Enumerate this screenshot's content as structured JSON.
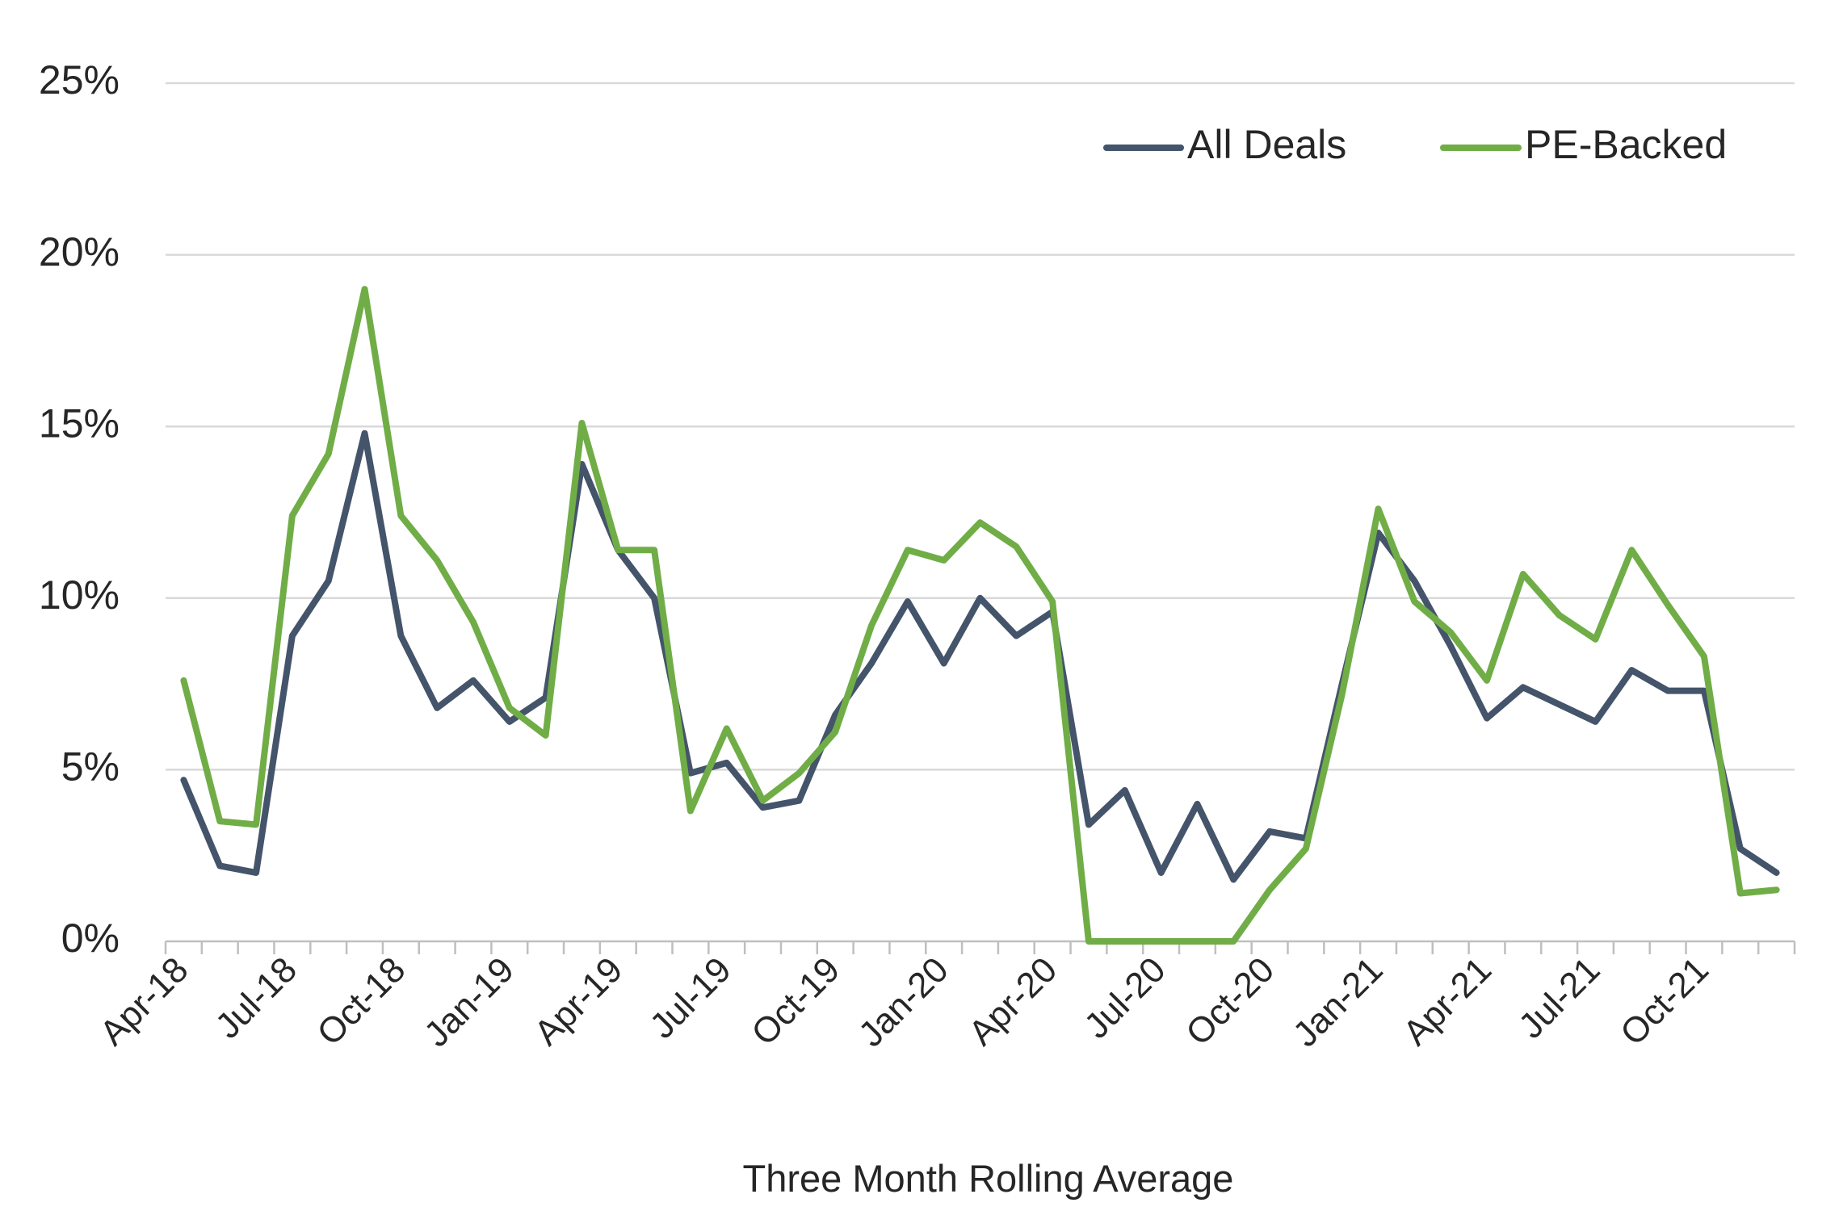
{
  "chart_data": {
    "type": "line",
    "xlabel": "Three Month Rolling Average",
    "ylabel": "",
    "ylim": [
      0,
      0.25
    ],
    "y_ticks": [
      {
        "value": 0,
        "label": "0%"
      },
      {
        "value": 0.05,
        "label": "5%"
      },
      {
        "value": 0.1,
        "label": "10%"
      },
      {
        "value": 0.15,
        "label": "15%"
      },
      {
        "value": 0.2,
        "label": "20%"
      },
      {
        "value": 0.25,
        "label": "25%"
      }
    ],
    "x_tick_labels": [
      {
        "index": 0,
        "label": "Apr-18"
      },
      {
        "index": 3,
        "label": "Jul-18"
      },
      {
        "index": 6,
        "label": "Oct-18"
      },
      {
        "index": 9,
        "label": "Jan-19"
      },
      {
        "index": 12,
        "label": "Apr-19"
      },
      {
        "index": 15,
        "label": "Jul-19"
      },
      {
        "index": 18,
        "label": "Oct-19"
      },
      {
        "index": 21,
        "label": "Jan-20"
      },
      {
        "index": 24,
        "label": "Apr-20"
      },
      {
        "index": 27,
        "label": "Jul-20"
      },
      {
        "index": 30,
        "label": "Oct-20"
      },
      {
        "index": 33,
        "label": "Jan-21"
      },
      {
        "index": 36,
        "label": "Apr-21"
      },
      {
        "index": 39,
        "label": "Jul-21"
      },
      {
        "index": 42,
        "label": "Oct-21"
      }
    ],
    "x": [
      "Apr-18",
      "May-18",
      "Jun-18",
      "Jul-18",
      "Aug-18",
      "Sep-18",
      "Oct-18",
      "Nov-18",
      "Dec-18",
      "Jan-19",
      "Feb-19",
      "Mar-19",
      "Apr-19",
      "May-19",
      "Jun-19",
      "Jul-19",
      "Aug-19",
      "Sep-19",
      "Oct-19",
      "Nov-19",
      "Dec-19",
      "Jan-20",
      "Feb-20",
      "Mar-20",
      "Apr-20",
      "May-20",
      "Jun-20",
      "Jul-20",
      "Aug-20",
      "Sep-20",
      "Oct-20",
      "Nov-20",
      "Dec-20",
      "Jan-21",
      "Feb-21",
      "Mar-21",
      "Apr-21",
      "May-21",
      "Jun-21",
      "Jul-21",
      "Aug-21",
      "Sep-21",
      "Oct-21",
      "Nov-21",
      "Dec-21"
    ],
    "grid": true,
    "legend": "top-right",
    "series": [
      {
        "name": "All Deals",
        "color": "#44546a",
        "values": [
          0.047,
          0.022,
          0.02,
          0.089,
          0.105,
          0.148,
          0.089,
          0.068,
          0.076,
          0.064,
          0.071,
          0.139,
          0.114,
          0.1,
          0.049,
          0.052,
          0.039,
          0.041,
          0.066,
          0.081,
          0.099,
          0.081,
          0.1,
          0.089,
          0.096,
          0.034,
          0.044,
          0.02,
          0.04,
          0.018,
          0.032,
          0.03,
          0.075,
          0.119,
          0.105,
          0.086,
          0.065,
          0.074,
          0.069,
          0.064,
          0.079,
          0.073,
          0.073,
          0.027,
          0.02
        ]
      },
      {
        "name": "PE-Backed",
        "color": "#70ad47",
        "values": [
          0.076,
          0.035,
          0.034,
          0.124,
          0.142,
          0.19,
          0.124,
          0.111,
          0.093,
          0.068,
          0.06,
          0.151,
          0.114,
          0.114,
          0.038,
          0.062,
          0.041,
          0.049,
          0.061,
          0.092,
          0.114,
          0.111,
          0.122,
          0.115,
          0.099,
          0.0,
          0.0,
          0.0,
          0.0,
          0.0,
          0.015,
          0.027,
          0.072,
          0.126,
          0.099,
          0.09,
          0.076,
          0.107,
          0.095,
          0.088,
          0.114,
          0.098,
          0.083,
          0.014,
          0.015
        ]
      }
    ]
  }
}
